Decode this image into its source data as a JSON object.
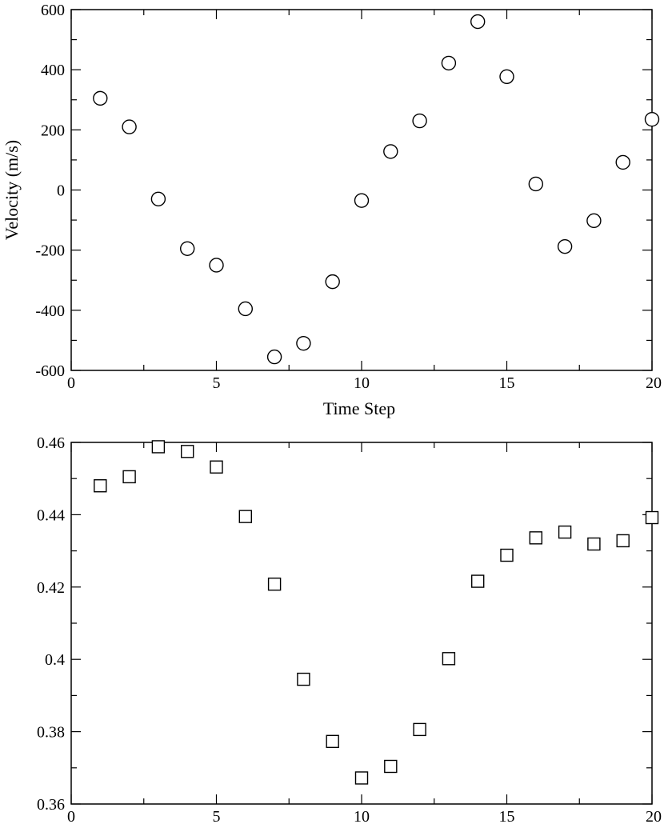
{
  "chart_data": [
    {
      "type": "scatter",
      "xlabel": "Time Step",
      "ylabel": "Velocity (m/s)",
      "xlim": [
        0,
        20
      ],
      "ylim": [
        -600,
        600
      ],
      "x_ticks": [
        0,
        5,
        10,
        15,
        20
      ],
      "x_tick_labels": [
        "0",
        "5",
        "10",
        "15",
        "20"
      ],
      "y_ticks": [
        -600,
        -400,
        -200,
        0,
        200,
        400,
        600
      ],
      "y_tick_labels": [
        "-600",
        "-400",
        "-200",
        "0",
        "200",
        "400",
        "600"
      ],
      "marker": "circle",
      "grid": false,
      "series": [
        {
          "x": [
            1,
            2,
            3,
            4,
            5,
            6,
            7,
            8,
            9,
            10,
            11,
            12,
            13,
            14,
            15,
            16,
            17,
            18,
            19,
            20
          ],
          "y": [
            305,
            210,
            -30,
            -195,
            -250,
            -395,
            -555,
            -510,
            -305,
            -35,
            128,
            230,
            422,
            560,
            377,
            20,
            -188,
            -102,
            92,
            235
          ]
        }
      ]
    },
    {
      "type": "scatter",
      "xlabel": "",
      "ylabel": "",
      "xlim": [
        0,
        20
      ],
      "ylim": [
        0.36,
        0.46
      ],
      "x_ticks": [
        0,
        5,
        10,
        15,
        20
      ],
      "x_tick_labels": [
        "0",
        "5",
        "10",
        "15",
        "20"
      ],
      "y_ticks": [
        0.36,
        0.38,
        0.4,
        0.42,
        0.44,
        0.46
      ],
      "y_tick_labels": [
        "0.36",
        "0.38",
        "0.4",
        "0.42",
        "0.44",
        "0.46"
      ],
      "marker": "square",
      "grid": false,
      "series": [
        {
          "x": [
            1,
            2,
            3,
            4,
            5,
            6,
            7,
            8,
            9,
            10,
            11,
            12,
            13,
            14,
            15,
            16,
            17,
            18,
            19,
            20
          ],
          "y": [
            0.448,
            0.4505,
            0.4588,
            0.4575,
            0.4532,
            0.4395,
            0.4208,
            0.3945,
            0.3773,
            0.3672,
            0.3704,
            0.3806,
            0.4002,
            0.4216,
            0.4288,
            0.4336,
            0.4352,
            0.4319,
            0.4328,
            0.4392
          ]
        }
      ]
    }
  ]
}
